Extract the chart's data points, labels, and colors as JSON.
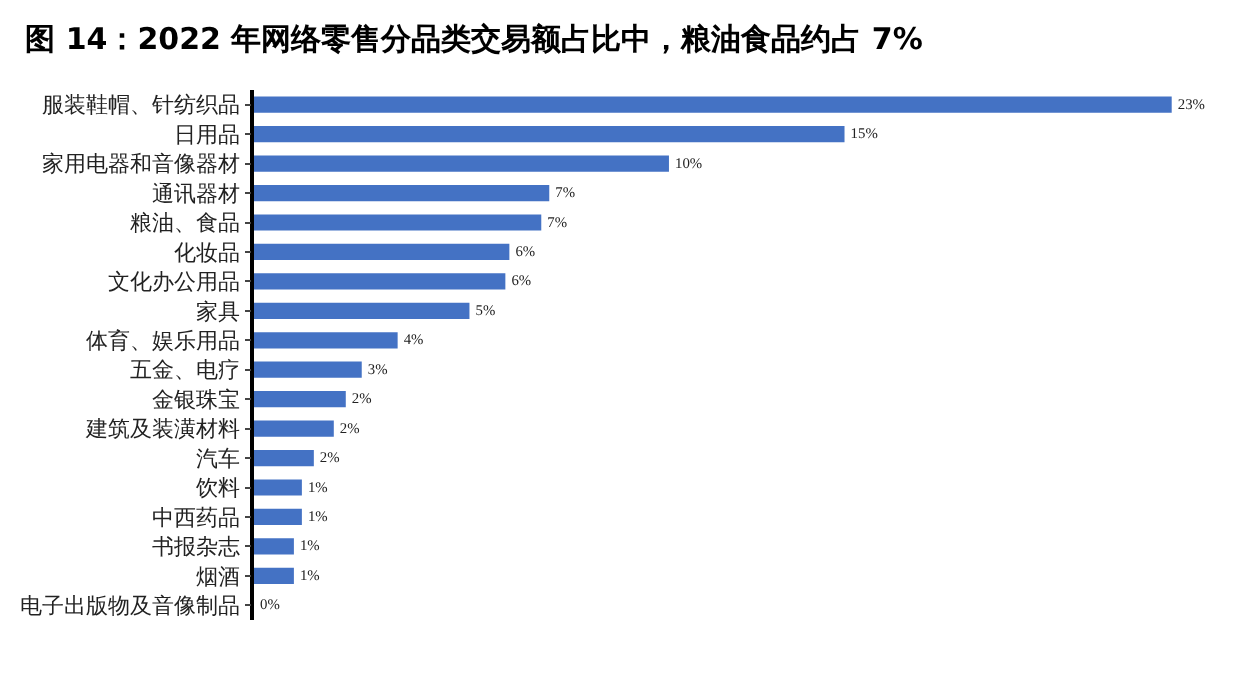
{
  "chart_data": {
    "type": "bar",
    "orientation": "horizontal",
    "title": "图 14：2022 年网络零售分品类交易额占比中，粮油食品约占 7%",
    "categories": [
      "服装鞋帽、针纺织品",
      "日用品",
      "家用电器和音像器材",
      "通讯器材",
      "粮油、食品",
      "化妆品",
      "文化办公用品",
      "家具",
      "体育、娱乐用品",
      "五金、电疗",
      "金银珠宝",
      "建筑及装潢材料",
      "汽车",
      "饮料",
      "中西药品",
      "书报杂志",
      "烟酒",
      "电子出版物及音像制品"
    ],
    "values": [
      23,
      14.8,
      10.4,
      7.4,
      7.2,
      6.4,
      6.3,
      5.4,
      3.6,
      2.7,
      2.3,
      2.0,
      1.5,
      1.2,
      1.2,
      1.0,
      1.0,
      0
    ],
    "value_labels": [
      "23%",
      "15%",
      "10%",
      "7%",
      "7%",
      "6%",
      "6%",
      "5%",
      "4%",
      "3%",
      "2%",
      "2%",
      "2%",
      "1%",
      "1%",
      "1%",
      "1%",
      "0%"
    ],
    "color": "#4472c4",
    "tick_labels": "y",
    "grid": false,
    "legend": false
  }
}
